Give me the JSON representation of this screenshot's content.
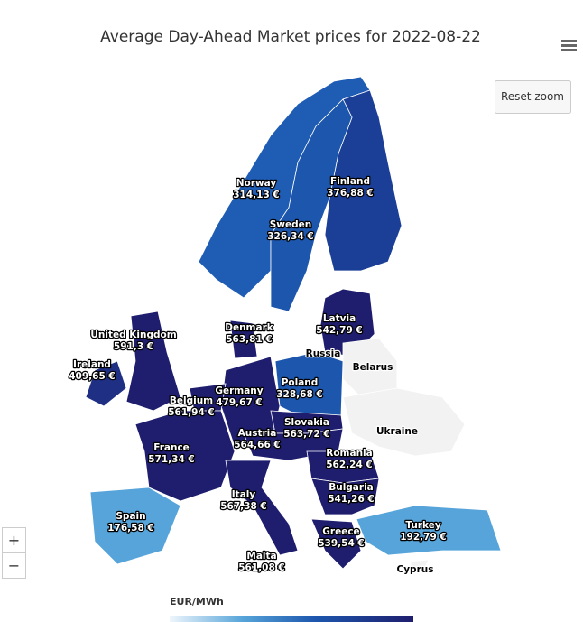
{
  "header": {
    "title": "Average Day-Ahead Market prices for 2022-08-22",
    "reset_zoom": "Reset zoom"
  },
  "zoom": {
    "in": "+",
    "out": "−"
  },
  "legend": {
    "title": "EUR/MWh"
  },
  "countries": [
    {
      "name": "Norway",
      "price": "314,13 €",
      "color": "#1f5cb4"
    },
    {
      "name": "Finland",
      "price": "376,88 €",
      "color": "#1b3f96"
    },
    {
      "name": "Sweden",
      "price": "326,34 €",
      "color": "#1d56ad"
    },
    {
      "name": "Latvia",
      "price": "542,79 €",
      "color": "#1f1e6e"
    },
    {
      "name": "Denmark",
      "price": "563,81 €",
      "color": "#1f1e6e"
    },
    {
      "name": "United Kingdom",
      "price": "591,3 €",
      "color": "#1f1e6e"
    },
    {
      "name": "Ireland",
      "price": "409,65 €",
      "color": "#1f2f84"
    },
    {
      "name": "Russia",
      "price": null,
      "color": "#f2f2f2"
    },
    {
      "name": "Belarus",
      "price": null,
      "color": "#f2f2f2"
    },
    {
      "name": "Poland",
      "price": "328,68 €",
      "color": "#1d56ad"
    },
    {
      "name": "Germany",
      "price": "479,67 €",
      "color": "#1f1e6e"
    },
    {
      "name": "Belgium",
      "price": "561,94 €",
      "color": "#1f1e6e"
    },
    {
      "name": "Slovakia",
      "price": "563,72 €",
      "color": "#1f1e6e"
    },
    {
      "name": "Austria",
      "price": "564,66 €",
      "color": "#1f1e6e"
    },
    {
      "name": "Ukraine",
      "price": null,
      "color": "#f2f2f2"
    },
    {
      "name": "France",
      "price": "571,34 €",
      "color": "#1f1e6e"
    },
    {
      "name": "Romania",
      "price": "562,24 €",
      "color": "#1f1e6e"
    },
    {
      "name": "Bulgaria",
      "price": "541,26 €",
      "color": "#1f1e6e"
    },
    {
      "name": "Italy",
      "price": "567,38 €",
      "color": "#1f1e6e"
    },
    {
      "name": "Spain",
      "price": "176,58 €",
      "color": "#56a4d9"
    },
    {
      "name": "Turkey",
      "price": "192,79 €",
      "color": "#56a4d9"
    },
    {
      "name": "Greece",
      "price": "539,54 €",
      "color": "#1f1e6e"
    },
    {
      "name": "Malta",
      "price": "561,08 €",
      "color": "#1f1e6e"
    },
    {
      "name": "Cyprus",
      "price": null,
      "color": "#f2f2f2"
    }
  ]
}
